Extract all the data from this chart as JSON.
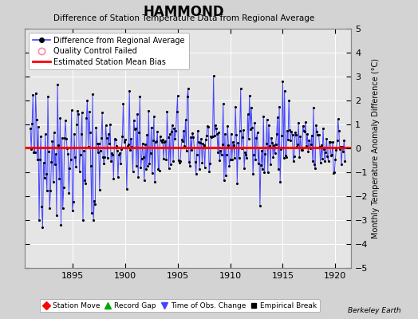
{
  "title": "HAMMOND",
  "subtitle": "Difference of Station Temperature Data from Regional Average",
  "ylabel": "Monthly Temperature Anomaly Difference (°C)",
  "xlim": [
    1890.5,
    1921.5
  ],
  "ylim": [
    -5,
    5
  ],
  "yticks": [
    -5,
    -4,
    -3,
    -2,
    -1,
    0,
    1,
    2,
    3,
    4,
    5
  ],
  "xticks": [
    1895,
    1900,
    1905,
    1910,
    1915,
    1920
  ],
  "bias_value": 0.05,
  "background_color": "#d3d3d3",
  "plot_bg_color": "#e5e5e5",
  "grid_color": "#ffffff",
  "line_color": "#4444ff",
  "marker_color": "#000000",
  "bias_color": "#ff0000",
  "watermark": "Berkeley Earth",
  "seed": 42,
  "start_year": 1891,
  "n_months": 360
}
